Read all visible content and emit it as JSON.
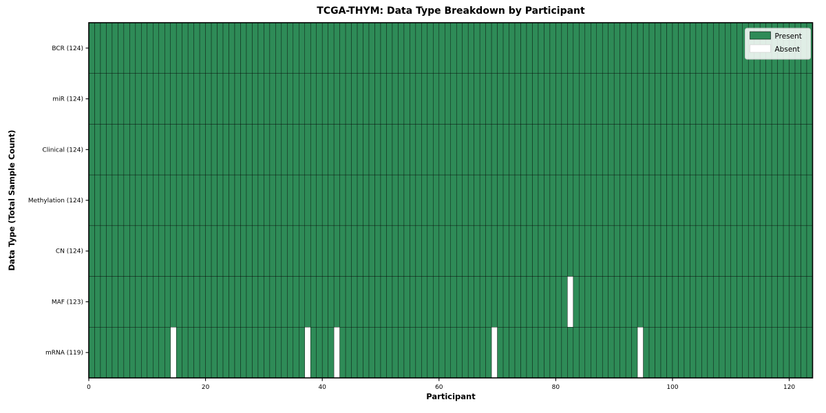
{
  "chart_data": {
    "type": "heatmap",
    "title": "TCGA-THYM: Data Type Breakdown by Participant",
    "xlabel": "Participant",
    "ylabel": "Data Type (Total Sample Count)",
    "n_participants": 124,
    "x_ticks": [
      0,
      20,
      40,
      60,
      80,
      100,
      120
    ],
    "rows": [
      {
        "label": "BCR (124)",
        "data_type": "BCR",
        "present_count": 124,
        "absent_participants": []
      },
      {
        "label": "miR (124)",
        "data_type": "miR",
        "present_count": 124,
        "absent_participants": []
      },
      {
        "label": "Clinical (124)",
        "data_type": "Clinical",
        "present_count": 124,
        "absent_participants": []
      },
      {
        "label": "Methylation (124)",
        "data_type": "Methylation",
        "present_count": 124,
        "absent_participants": []
      },
      {
        "label": "CN (124)",
        "data_type": "CN",
        "present_count": 124,
        "absent_participants": []
      },
      {
        "label": "MAF (123)",
        "data_type": "MAF",
        "present_count": 123,
        "absent_participants": [
          82
        ]
      },
      {
        "label": "mRNA (119)",
        "data_type": "mRNA",
        "present_count": 119,
        "absent_participants": [
          14,
          37,
          42,
          69,
          94
        ]
      }
    ],
    "legend": {
      "position": "upper right",
      "entries": [
        {
          "label": "Present",
          "color": "#2e8b57"
        },
        {
          "label": "Absent",
          "color": "#ffffff"
        }
      ]
    },
    "colors": {
      "present": "#2e8b57",
      "absent": "#ffffff",
      "cell_edge": "#000000",
      "axis": "#000000",
      "legend_border": "#cccccc",
      "text": "#000000"
    },
    "axis_ranges": {
      "x_min": 0,
      "x_max": 124,
      "bar_alignment": "edge"
    }
  }
}
